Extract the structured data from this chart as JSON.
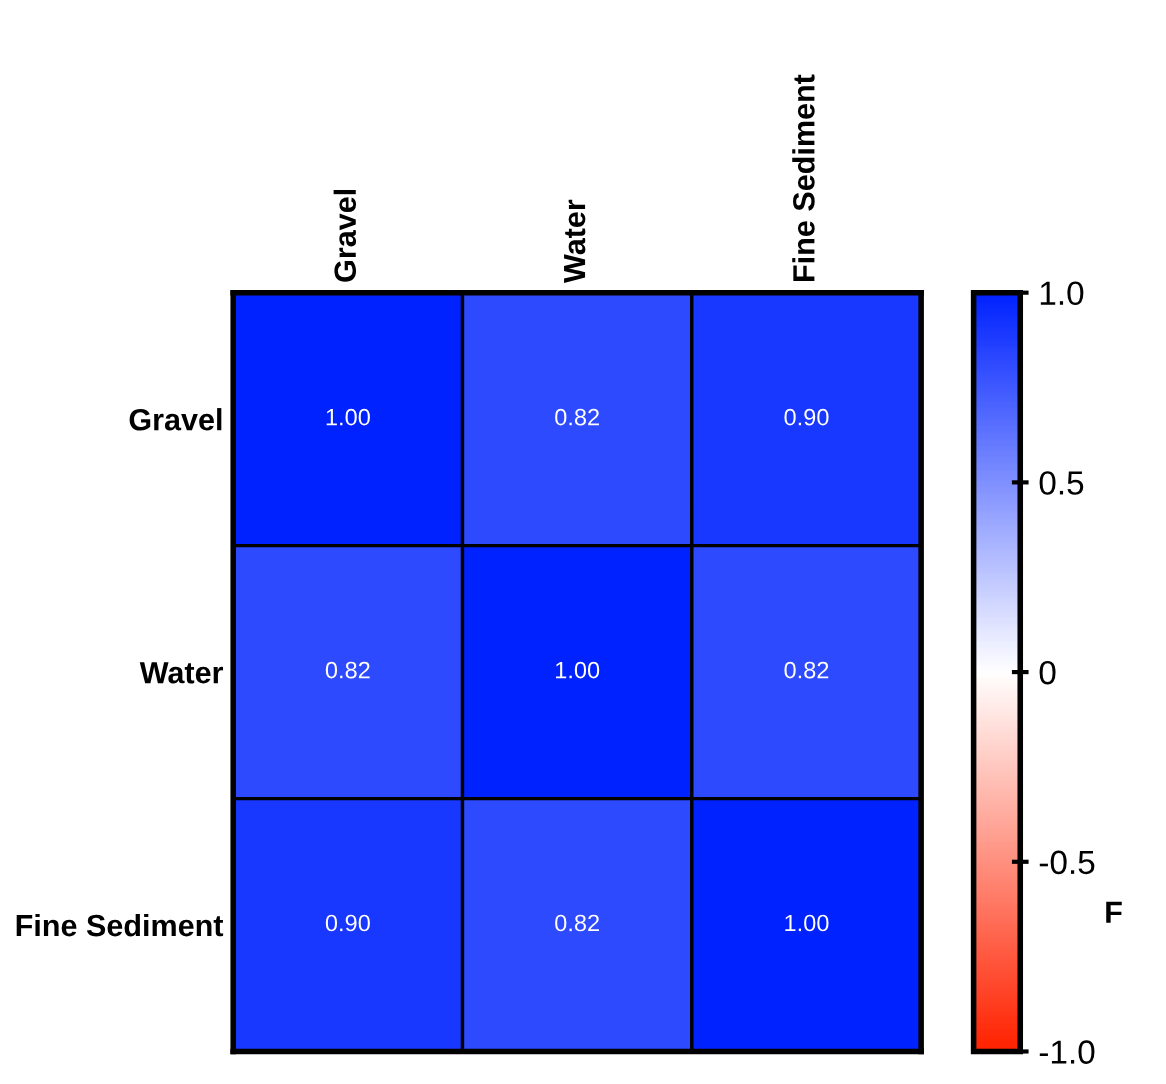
{
  "chart_data": {
    "type": "heatmap",
    "categories": [
      "Gravel",
      "Water",
      "Fine Sediment"
    ],
    "y_categories": [
      "Gravel",
      "Water",
      "Fine Sediment"
    ],
    "cells": [
      [
        1.0,
        0.82,
        0.9
      ],
      [
        0.82,
        1.0,
        0.82
      ],
      [
        0.9,
        0.82,
        1.0
      ]
    ],
    "cell_labels": [
      [
        "1.00",
        "0.82",
        "0.90"
      ],
      [
        "0.82",
        "1.00",
        "0.82"
      ],
      [
        "0.90",
        "0.82",
        "1.00"
      ]
    ],
    "clim": [
      -1.0,
      1.0
    ],
    "cticks": [
      {
        "value": -1.0,
        "label": "-1.0"
      },
      {
        "value": -0.5,
        "label": "-0.5"
      },
      0,
      {
        "value": 0.5,
        "label": "0.5"
      },
      {
        "value": 1.0,
        "label": "1.0"
      }
    ],
    "colors": [
      "#ff2200",
      "#ffffff",
      "#0022ff"
    ],
    "clabel": "F"
  }
}
